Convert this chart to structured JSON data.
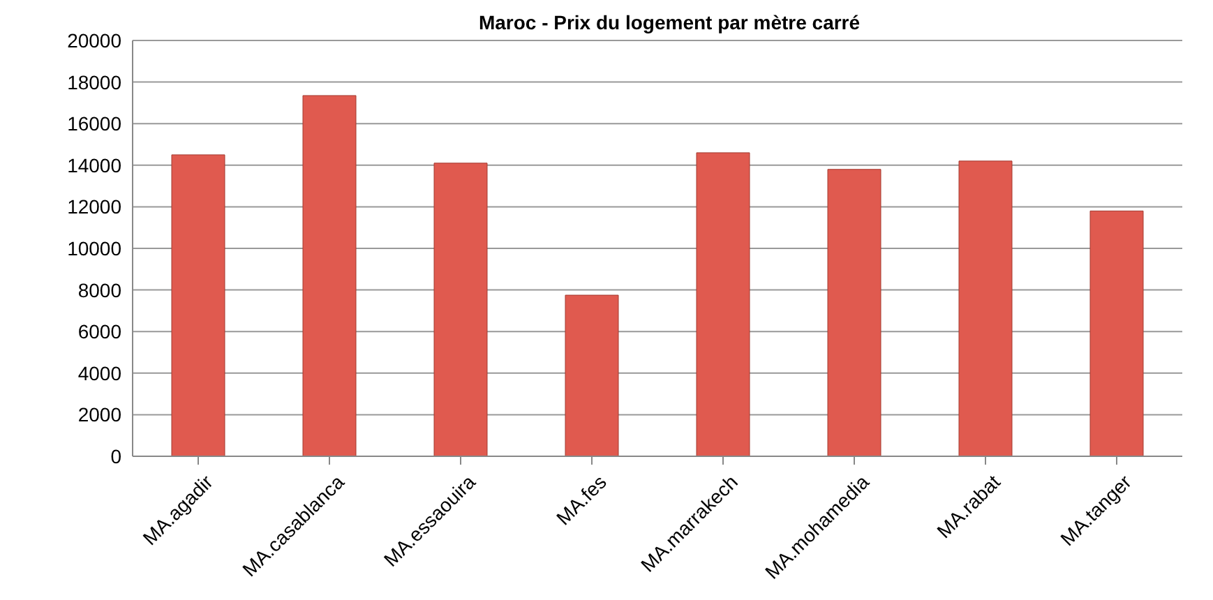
{
  "chart_data": {
    "type": "bar",
    "title": "Maroc - Prix du logement par mètre carré",
    "categories": [
      "MA.agadir",
      "MA.casablanca",
      "MA.essaouira",
      "MA.fes",
      "MA.marrakech",
      "MA.mohamedia",
      "MA.rabat",
      "MA.tanger"
    ],
    "values": [
      14500,
      17350,
      14100,
      7750,
      14600,
      13800,
      14200,
      11800
    ],
    "color": "#e05a4f",
    "ylim": [
      0,
      20000
    ],
    "yticks": [
      0,
      2000,
      4000,
      6000,
      8000,
      10000,
      12000,
      14000,
      16000,
      18000,
      20000
    ],
    "grid": "y",
    "legend": false
  }
}
